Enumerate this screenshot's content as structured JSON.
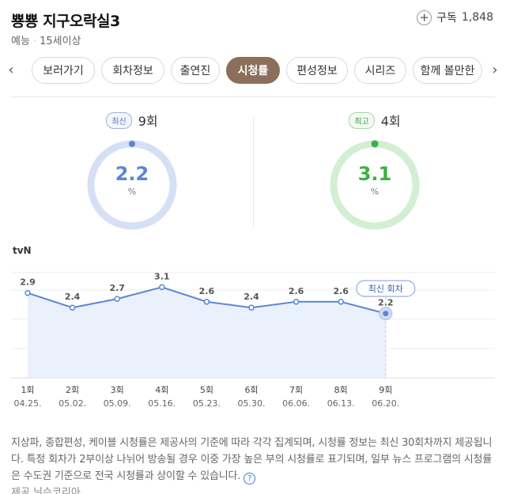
{
  "header": {
    "title": "뿅뿅 지구오락실3",
    "genre": "예능",
    "rating": "15세이상",
    "subscribe_label": "구독",
    "subscribe_count": "1,848"
  },
  "tabs": [
    {
      "label": "보러가기"
    },
    {
      "label": "회차정보"
    },
    {
      "label": "출연진"
    },
    {
      "label": "시청률",
      "active": true
    },
    {
      "label": "편성정보"
    },
    {
      "label": "시리즈"
    },
    {
      "label": "함께 볼만한"
    }
  ],
  "latest": {
    "badge": "최신",
    "episode": "9회",
    "value": "2.2",
    "unit": "%",
    "color": "#5b86d6",
    "track": "#d5e0f5"
  },
  "highest": {
    "badge": "최고",
    "episode": "4회",
    "value": "3.1",
    "unit": "%",
    "color": "#3cb043",
    "track": "#d2efd3"
  },
  "channel": "tvN",
  "chart_data": {
    "type": "line",
    "series": [
      {
        "name": "tvN",
        "values": [
          2.9,
          2.4,
          2.7,
          3.1,
          2.6,
          2.4,
          2.6,
          2.6,
          2.2
        ]
      }
    ],
    "categories": [
      "1회",
      "2회",
      "3회",
      "4회",
      "5회",
      "6회",
      "7회",
      "8회",
      "9회"
    ],
    "dates": [
      "04.25.",
      "05.02.",
      "05.09.",
      "05.16.",
      "05.23.",
      "05.30.",
      "06.06.",
      "06.13.",
      "06.20."
    ],
    "data_labels": [
      "2.9",
      "2.4",
      "2.7",
      "3.1",
      "2.6",
      "2.4",
      "2.6",
      "2.6",
      "2.2"
    ],
    "callout": "최신 회차",
    "ylim": [
      0,
      4
    ],
    "line_color": "#5b86d6"
  },
  "note": "지상파, 종합편성, 케이블 시청률은 제공사의 기준에 따라 각각 집계되며, 시청률 정보는 최신 30회차까지 제공됩니다. 특정 회차가 2부이상 나뉘어 방송될 경우 이중 가장 높은 부의 시청률로 표기되며, 일부 뉴스 프로그램의 시청률은 수도권 기준으로 전국 시청률과 상이할 수 있습니다.",
  "help_icon": "?",
  "source": "제공 닐슨코리아"
}
